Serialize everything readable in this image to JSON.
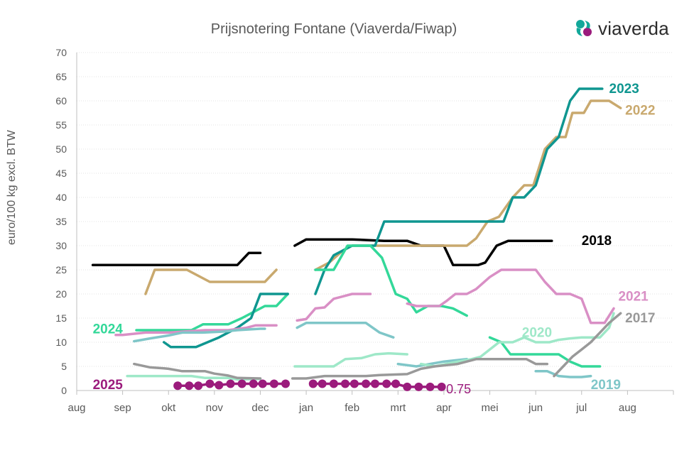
{
  "logo": {
    "text": "viaverda",
    "icon": "viaverda-logo-icon",
    "colors": [
      "#12a89a",
      "#9b1b7c"
    ]
  },
  "chart_data": {
    "type": "line",
    "title": "Prijsnotering Fontane (Viaverda/Fiwap)",
    "ylabel": "euro/100 kg excl. BTW",
    "ylim": [
      0,
      70
    ],
    "yticks": [
      0,
      5,
      10,
      15,
      20,
      25,
      30,
      35,
      40,
      45,
      50,
      55,
      60,
      65,
      70
    ],
    "xlim": [
      0,
      13
    ],
    "xtick_labels": [
      "aug",
      "sep",
      "okt",
      "nov",
      "dec",
      "jan",
      "feb",
      "mrt",
      "apr",
      "mei",
      "jun",
      "jul",
      "aug"
    ],
    "grid": "horizontal",
    "series": [
      {
        "name": "2018",
        "color": "#000000",
        "segments": [
          [
            [
              0.35,
              26
            ],
            [
              3.5,
              26
            ],
            [
              3.75,
              28.5
            ],
            [
              4.0,
              28.5
            ]
          ],
          [
            [
              4.75,
              30
            ],
            [
              5.0,
              31.3
            ],
            [
              6.0,
              31.3
            ],
            [
              6.7,
              31
            ],
            [
              7.2,
              31
            ],
            [
              7.5,
              30
            ],
            [
              8.0,
              30
            ],
            [
              8.2,
              26
            ],
            [
              8.75,
              26
            ],
            [
              8.9,
              26.5
            ],
            [
              9.15,
              30
            ],
            [
              9.4,
              31
            ],
            [
              10.35,
              31
            ]
          ]
        ],
        "label_at": [
          11.0,
          31
        ]
      },
      {
        "name": "2022",
        "color": "#c9a96e",
        "segments": [
          [
            [
              1.5,
              20
            ],
            [
              1.7,
              25
            ],
            [
              2.4,
              25
            ],
            [
              2.9,
              22.5
            ],
            [
              4.1,
              22.5
            ],
            [
              4.35,
              25
            ]
          ],
          [
            [
              5.2,
              25
            ],
            [
              5.5,
              26.5
            ],
            [
              5.8,
              29
            ],
            [
              6.0,
              30
            ],
            [
              8.5,
              30
            ],
            [
              8.7,
              31.5
            ],
            [
              8.95,
              35
            ],
            [
              9.2,
              36
            ],
            [
              9.5,
              40
            ],
            [
              9.75,
              42.5
            ],
            [
              9.95,
              42.5
            ],
            [
              10.2,
              50
            ],
            [
              10.45,
              52.5
            ],
            [
              10.65,
              52.5
            ],
            [
              10.8,
              57.5
            ],
            [
              11.05,
              57.5
            ],
            [
              11.2,
              60
            ],
            [
              11.6,
              60
            ],
            [
              11.85,
              58.5
            ]
          ]
        ],
        "label_at": [
          11.95,
          58
        ]
      },
      {
        "name": "2023",
        "color": "#0f9690",
        "segments": [
          [
            [
              5.2,
              20
            ],
            [
              5.4,
              25
            ],
            [
              5.6,
              28
            ],
            [
              6.0,
              30
            ],
            [
              6.5,
              30
            ],
            [
              6.7,
              35
            ],
            [
              9.3,
              35
            ],
            [
              9.5,
              40
            ],
            [
              9.75,
              40
            ],
            [
              10.0,
              42.5
            ],
            [
              10.25,
              50
            ],
            [
              10.5,
              52.5
            ],
            [
              10.75,
              60
            ],
            [
              10.95,
              62.5
            ],
            [
              11.45,
              62.5
            ]
          ]
        ],
        "label_at": [
          11.6,
          62.5
        ]
      },
      {
        "name": "2024",
        "color": "#33d899",
        "segments": [
          [
            [
              1.3,
              12.5
            ],
            [
              2.5,
              12.5
            ],
            [
              2.75,
              13.7
            ],
            [
              3.3,
              13.7
            ],
            [
              3.6,
              15
            ],
            [
              3.9,
              16.5
            ],
            [
              4.1,
              17.5
            ],
            [
              4.35,
              17.5
            ],
            [
              4.6,
              20
            ]
          ],
          [
            [
              5.2,
              25
            ],
            [
              5.6,
              25
            ],
            [
              5.9,
              30
            ],
            [
              6.4,
              30
            ],
            [
              6.65,
              27.5
            ],
            [
              6.95,
              20
            ],
            [
              7.2,
              19
            ],
            [
              7.4,
              16.2
            ],
            [
              7.65,
              17.5
            ],
            [
              7.95,
              17.5
            ],
            [
              8.2,
              17
            ],
            [
              8.5,
              15.5
            ]
          ],
          [
            [
              9.0,
              11
            ],
            [
              9.25,
              10
            ],
            [
              9.45,
              7.5
            ],
            [
              10.5,
              7.5
            ],
            [
              10.75,
              6
            ],
            [
              11.0,
              5
            ],
            [
              11.4,
              5
            ]
          ]
        ],
        "label_at": [
          0.35,
          12.7
        ]
      },
      {
        "name": "2024-b",
        "color": "#0f9690",
        "segments": [
          [
            [
              1.9,
              10
            ],
            [
              2.05,
              9
            ],
            [
              2.6,
              9
            ],
            [
              3.1,
              11
            ],
            [
              3.5,
              13
            ],
            [
              3.8,
              15
            ],
            [
              4.0,
              20
            ],
            [
              4.6,
              20
            ]
          ]
        ]
      },
      {
        "name": "2021",
        "color": "#d98fc5",
        "segments": [
          [
            [
              0.85,
              11.5
            ],
            [
              1.0,
              11.5
            ],
            [
              1.5,
              12
            ],
            [
              2.0,
              12
            ],
            [
              2.8,
              12.5
            ],
            [
              3.3,
              12.5
            ],
            [
              3.7,
              13
            ],
            [
              3.9,
              13.5
            ],
            [
              4.35,
              13.5
            ]
          ],
          [
            [
              4.8,
              14.5
            ],
            [
              5.0,
              14.8
            ],
            [
              5.2,
              17
            ],
            [
              5.4,
              17.2
            ],
            [
              5.6,
              19
            ],
            [
              5.8,
              19.5
            ],
            [
              6.0,
              20
            ],
            [
              6.4,
              20
            ]
          ],
          [
            [
              7.2,
              18
            ],
            [
              7.4,
              17.5
            ],
            [
              7.9,
              17.5
            ],
            [
              8.05,
              18.5
            ],
            [
              8.25,
              20
            ],
            [
              8.5,
              20
            ],
            [
              8.7,
              21
            ],
            [
              9.0,
              23.5
            ],
            [
              9.25,
              25
            ],
            [
              10.0,
              25
            ],
            [
              10.2,
              22.5
            ],
            [
              10.45,
              20
            ],
            [
              10.75,
              20
            ],
            [
              11.0,
              19
            ],
            [
              11.2,
              14
            ],
            [
              11.5,
              14
            ],
            [
              11.7,
              17
            ]
          ]
        ],
        "label_at": [
          11.8,
          19.5
        ]
      },
      {
        "name": "2019",
        "color": "#7fc6c8",
        "segments": [
          [
            [
              1.25,
              10.2
            ],
            [
              1.6,
              10.8
            ],
            [
              2.0,
              11.4
            ],
            [
              2.3,
              12
            ],
            [
              2.75,
              12
            ],
            [
              3.2,
              12.2
            ],
            [
              3.5,
              12.5
            ],
            [
              4.0,
              12.8
            ],
            [
              4.1,
              12.8
            ]
          ],
          [
            [
              4.8,
              13
            ],
            [
              5.0,
              14
            ],
            [
              6.3,
              14
            ],
            [
              6.6,
              12
            ],
            [
              6.9,
              11
            ]
          ],
          [
            [
              7.0,
              5.5
            ],
            [
              7.4,
              5
            ],
            [
              7.7,
              5.5
            ],
            [
              8.0,
              6
            ],
            [
              8.5,
              6.5
            ]
          ],
          [
            [
              10.0,
              4
            ],
            [
              10.25,
              4
            ],
            [
              10.5,
              3
            ],
            [
              10.75,
              2.8
            ],
            [
              11.0,
              2.8
            ],
            [
              11.2,
              3
            ]
          ]
        ],
        "label_at": [
          11.2,
          1.2
        ]
      },
      {
        "name": "2020",
        "color": "#9ee8c8",
        "segments": [
          [
            [
              1.1,
              3
            ],
            [
              2.5,
              3
            ],
            [
              2.8,
              2.6
            ],
            [
              3.3,
              2.6
            ],
            [
              3.5,
              2.3
            ],
            [
              4.0,
              2.4
            ]
          ],
          [
            [
              4.75,
              5
            ],
            [
              5.6,
              5
            ],
            [
              5.85,
              6.5
            ],
            [
              6.2,
              6.7
            ],
            [
              6.5,
              7.5
            ],
            [
              6.8,
              7.7
            ],
            [
              7.2,
              7.5
            ]
          ],
          [
            [
              7.5,
              5.5
            ],
            [
              7.8,
              5
            ],
            [
              8.2,
              5.8
            ],
            [
              8.6,
              6.5
            ],
            [
              8.8,
              7
            ],
            [
              9.2,
              10
            ],
            [
              9.5,
              10
            ],
            [
              9.75,
              11
            ],
            [
              10.0,
              10
            ],
            [
              10.3,
              10
            ],
            [
              10.5,
              10.5
            ],
            [
              10.75,
              10.8
            ],
            [
              11.0,
              11
            ],
            [
              11.4,
              11
            ],
            [
              11.6,
              13
            ],
            [
              11.7,
              16
            ]
          ]
        ],
        "label_at": [
          9.7,
          12
        ]
      },
      {
        "name": "2017",
        "color": "#999999",
        "segments": [
          [
            [
              1.25,
              5.5
            ],
            [
              1.6,
              4.8
            ],
            [
              1.9,
              4.6
            ],
            [
              2.0,
              4.5
            ],
            [
              2.3,
              4
            ],
            [
              2.8,
              4
            ],
            [
              3.0,
              3.5
            ],
            [
              3.3,
              3.1
            ],
            [
              3.5,
              2.6
            ],
            [
              4.0,
              2.5
            ]
          ],
          [
            [
              4.7,
              2.5
            ],
            [
              5.0,
              2.5
            ],
            [
              5.4,
              3
            ],
            [
              6.0,
              3
            ],
            [
              6.3,
              3
            ],
            [
              6.6,
              3.2
            ],
            [
              7.2,
              3.4
            ],
            [
              7.5,
              4.5
            ],
            [
              7.8,
              5
            ],
            [
              8.3,
              5.5
            ],
            [
              8.7,
              6.5
            ],
            [
              9.5,
              6.5
            ],
            [
              9.8,
              6.5
            ],
            [
              10.0,
              5.5
            ],
            [
              10.25,
              5.5
            ]
          ],
          [
            [
              10.4,
              3
            ],
            [
              10.6,
              5
            ],
            [
              10.8,
              7
            ],
            [
              11.0,
              8.5
            ],
            [
              11.2,
              10
            ],
            [
              11.4,
              12
            ],
            [
              11.6,
              14
            ],
            [
              11.85,
              16
            ]
          ]
        ],
        "label_at": [
          11.95,
          15
        ]
      },
      {
        "name": "2025",
        "color": "#9b1b7c",
        "markers": true,
        "segments": [
          [
            [
              2.2,
              1
            ],
            [
              2.45,
              1
            ],
            [
              2.65,
              1
            ],
            [
              2.9,
              1.4
            ],
            [
              3.1,
              1.1
            ],
            [
              3.35,
              1.4
            ],
            [
              3.6,
              1.4
            ],
            [
              3.85,
              1.4
            ],
            [
              4.05,
              1.4
            ],
            [
              4.3,
              1.4
            ],
            [
              4.55,
              1.4
            ]
          ],
          [
            [
              5.15,
              1.4
            ],
            [
              5.35,
              1.4
            ],
            [
              5.6,
              1.4
            ],
            [
              5.85,
              1.4
            ],
            [
              6.05,
              1.4
            ],
            [
              6.3,
              1.4
            ],
            [
              6.5,
              1.4
            ],
            [
              6.75,
              1.4
            ],
            [
              6.95,
              1.4
            ],
            [
              7.2,
              0.75
            ],
            [
              7.45,
              0.75
            ],
            [
              7.7,
              0.75
            ],
            [
              7.95,
              0.75
            ]
          ]
        ],
        "label_at": [
          0.35,
          1.2
        ]
      }
    ],
    "annotations": [
      {
        "text": "0.75",
        "x": 8.05,
        "y": 0.3,
        "color": "#9b1b7c"
      }
    ]
  }
}
